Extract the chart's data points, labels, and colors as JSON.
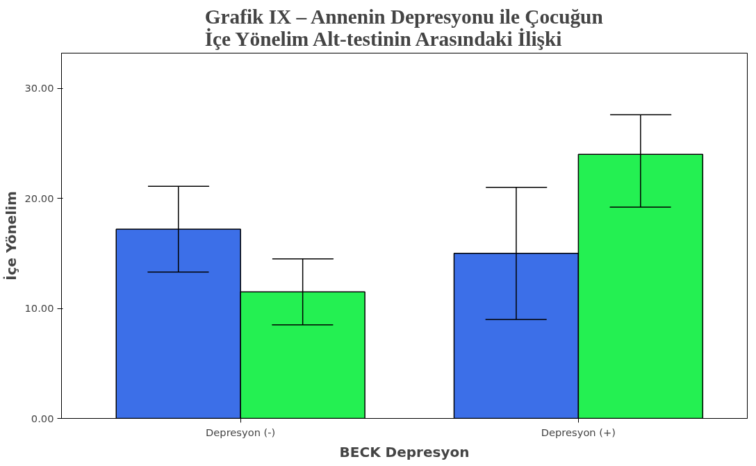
{
  "chart_data": {
    "type": "bar",
    "title": "Grafik IX – Annenin Depresyonu ile Çocuğun İçe Yönelim Alt-testinin Arasındaki İlişki",
    "xlabel": "BECK Depresyon",
    "ylabel": "İçe Yönelim",
    "categories": [
      "Depresyon (-)",
      "Depresyon (+)"
    ],
    "series": [
      {
        "color": "#3c6fe8",
        "values": [
          17.2,
          15.0
        ],
        "errors": [
          [
            13.3,
            21.1
          ],
          [
            9.0,
            21.0
          ]
        ]
      },
      {
        "color": "#24f052",
        "values": [
          11.5,
          24.0
        ],
        "errors": [
          [
            8.5,
            14.5
          ],
          [
            19.2,
            27.6
          ]
        ]
      }
    ],
    "ylim": [
      0,
      33.2
    ],
    "yticks": [
      {
        "value": 0,
        "label": "0.00"
      },
      {
        "value": 10,
        "label": "10.00"
      },
      {
        "value": 20,
        "label": "20.00"
      },
      {
        "value": 30,
        "label": "30.00"
      }
    ],
    "grid": false
  }
}
